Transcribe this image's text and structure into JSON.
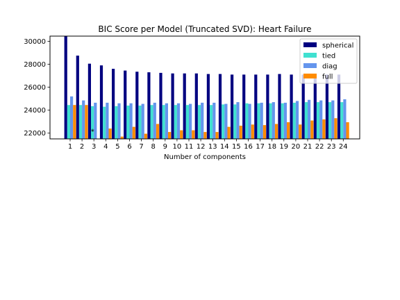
{
  "chart_data": {
    "type": "bar",
    "title": "BIC Score per Model (Truncated SVD): Heart Failure",
    "xlabel": "Number of components",
    "ylabel": "",
    "categories": [
      "1",
      "2",
      "3",
      "4",
      "5",
      "6",
      "7",
      "8",
      "9",
      "10",
      "11",
      "12",
      "13",
      "14",
      "15",
      "16",
      "17",
      "18",
      "19",
      "20",
      "21",
      "22",
      "23",
      "24"
    ],
    "ylim": [
      21500,
      30450
    ],
    "yticks": [
      22000,
      24000,
      26000,
      28000,
      30000
    ],
    "yticklabels": [
      "22000",
      "24000",
      "26000",
      "28000",
      "30000"
    ],
    "grid": false,
    "legend_position": "top-right",
    "series": [
      {
        "name": "spherical",
        "color": "#000080",
        "values": [
          30450,
          28750,
          28050,
          27900,
          27600,
          27450,
          27350,
          27300,
          27250,
          27200,
          27200,
          27200,
          27150,
          27150,
          27100,
          27100,
          27100,
          27100,
          27150,
          27100,
          27100,
          27100,
          27100,
          27100
        ]
      },
      {
        "name": "tied",
        "color": "#40e0d0",
        "values": [
          24450,
          24450,
          24350,
          24300,
          24350,
          24400,
          24400,
          24450,
          24450,
          24450,
          24450,
          24450,
          24450,
          24500,
          24500,
          24600,
          24600,
          24600,
          24600,
          24650,
          24700,
          24700,
          24700,
          24700
        ]
      },
      {
        "name": "diag",
        "color": "#6495ed",
        "values": [
          25200,
          24850,
          24650,
          24650,
          24600,
          24600,
          24550,
          24650,
          24600,
          24600,
          24550,
          24650,
          24650,
          24550,
          24700,
          24550,
          24650,
          24700,
          24650,
          24800,
          24900,
          24850,
          24850,
          24950
        ]
      },
      {
        "name": "full",
        "color": "#ff8c00",
        "values": [
          24450,
          24450,
          21500,
          22400,
          21700,
          22550,
          21950,
          22800,
          22100,
          22250,
          22250,
          22100,
          22100,
          22550,
          22650,
          22750,
          22700,
          22800,
          22950,
          22750,
          23100,
          23200,
          23300,
          22950
        ]
      }
    ],
    "annotations": [
      {
        "text": "*",
        "category": "3",
        "value": 22200
      }
    ]
  }
}
